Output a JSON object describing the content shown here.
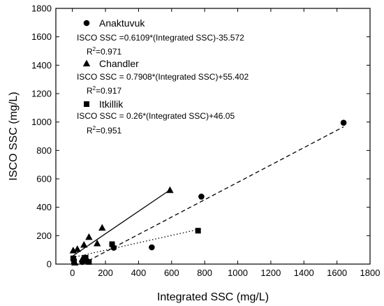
{
  "chart_data": {
    "type": "scatter",
    "xlabel": "Integrated SSC (mg/L)",
    "ylabel": "ISCO SSC (mg/L)",
    "xlim": [
      -100,
      1800
    ],
    "ylim": [
      0,
      1800
    ],
    "xticks": [
      0,
      200,
      400,
      600,
      800,
      1000,
      1200,
      1400,
      1600,
      1800
    ],
    "yticks": [
      0,
      200,
      400,
      600,
      800,
      1000,
      1200,
      1400,
      1600,
      1800
    ],
    "grid": false,
    "legend_position": "top-left",
    "series": [
      {
        "name": "Anaktuvuk",
        "marker": "circle",
        "equation": "ISCO SSC =0.6109*(Integrated SSC)-35.572",
        "r2_prefix": "R",
        "r2_sup": "2",
        "r2_value": "=0.971",
        "slope": 0.6109,
        "intercept": -35.572,
        "fit_range": [
          60,
          1640
        ],
        "line_style": "dashed",
        "points": [
          [
            1640,
            995
          ],
          [
            780,
            475
          ],
          [
            480,
            118
          ],
          [
            250,
            115
          ],
          [
            60,
            15
          ],
          [
            90,
            20
          ]
        ]
      },
      {
        "name": "Chandler",
        "marker": "triangle",
        "equation": "ISCO SSC = 0.7908*(Integrated SSC)+55.402",
        "r2_prefix": "R",
        "r2_sup": "2",
        "r2_value": "=0.917",
        "slope": 0.7908,
        "intercept": 55.402,
        "fit_range": [
          0,
          590
        ],
        "line_style": "solid",
        "points": [
          [
            590,
            520
          ],
          [
            180,
            255
          ],
          [
            100,
            190
          ],
          [
            150,
            145
          ],
          [
            70,
            135
          ],
          [
            30,
            105
          ],
          [
            5,
            95
          ],
          [
            60,
            35
          ],
          [
            15,
            10
          ]
        ]
      },
      {
        "name": "Itkillik",
        "marker": "square",
        "equation": "ISCO SSC = 0.26*(Integrated SSC)+46.05",
        "r2_prefix": "R",
        "r2_sup": "2",
        "r2_value": "=0.951",
        "slope": 0.26,
        "intercept": 46.05,
        "fit_range": [
          0,
          760
        ],
        "line_style": "dotted",
        "points": [
          [
            760,
            235
          ],
          [
            240,
            140
          ],
          [
            5,
            40
          ],
          [
            10,
            20
          ],
          [
            80,
            45
          ],
          [
            100,
            15
          ]
        ]
      }
    ]
  }
}
